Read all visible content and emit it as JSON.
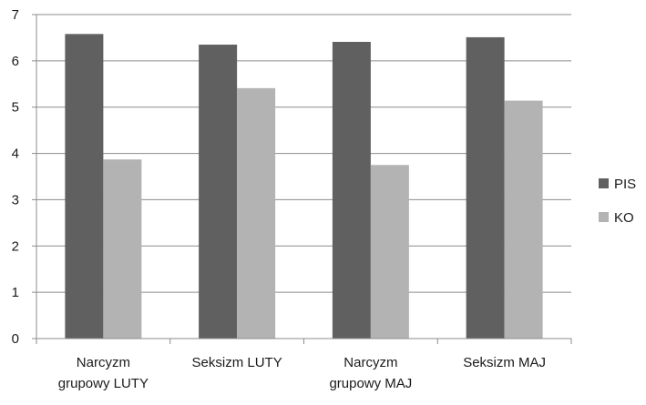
{
  "chart_data": {
    "type": "bar",
    "categories": [
      [
        "Narcyzm",
        "grupowy LUTY"
      ],
      [
        "Seksizm LUTY"
      ],
      [
        "Narcyzm",
        "grupowy MAJ"
      ],
      [
        "Seksizm MAJ"
      ]
    ],
    "series": [
      {
        "name": "PIS",
        "color": "#606060",
        "values": [
          6.58,
          6.35,
          6.41,
          6.51
        ]
      },
      {
        "name": "KO",
        "color": "#b3b3b3",
        "values": [
          3.87,
          5.41,
          3.75,
          5.14
        ]
      }
    ],
    "ylim": [
      0,
      7
    ],
    "yticks": [
      0,
      1,
      2,
      3,
      4,
      5,
      6,
      7
    ],
    "grid": true,
    "legend": "right",
    "title": "",
    "xlabel": "",
    "ylabel": ""
  }
}
